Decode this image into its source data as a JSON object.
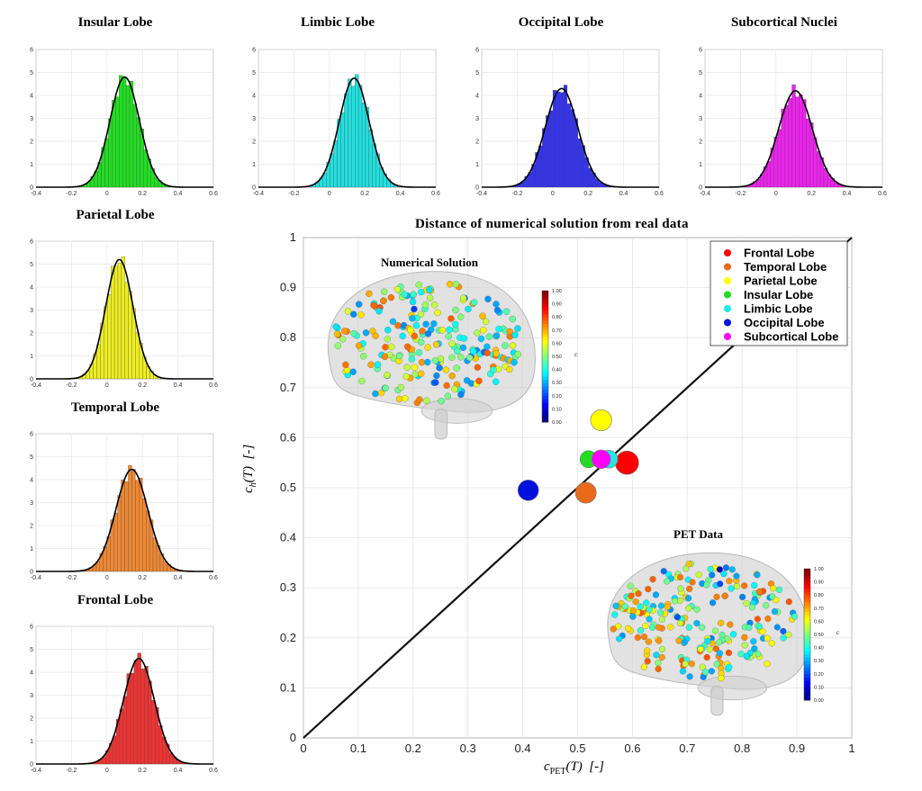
{
  "histograms": [
    {
      "id": "insular",
      "title": "Insular Lobe",
      "color": "#22dd22",
      "mean": 0.1,
      "sd": 0.083,
      "peak": 4.8,
      "skew": 0.0
    },
    {
      "id": "limbic",
      "title": "Limbic Lobe",
      "color": "#22e0e0",
      "mean": 0.14,
      "sd": 0.084,
      "peak": 4.75,
      "skew": 0.02
    },
    {
      "id": "occipital",
      "title": "Occipital Lobe",
      "color": "#3333ee",
      "mean": 0.05,
      "sd": 0.092,
      "peak": 4.3,
      "skew": -0.02
    },
    {
      "id": "subcortical",
      "title": "Subcortical Nuclei",
      "color": "#ee22ee",
      "mean": 0.11,
      "sd": 0.095,
      "peak": 4.2,
      "skew": 0.0
    },
    {
      "id": "parietal",
      "title": "Parietal Lobe",
      "color": "#eeee22",
      "mean": 0.07,
      "sd": 0.077,
      "peak": 5.2,
      "skew": 0.0
    },
    {
      "id": "temporal",
      "title": "Temporal Lobe",
      "color": "#ee8833",
      "mean": 0.14,
      "sd": 0.09,
      "peak": 4.45,
      "skew": 0.0
    },
    {
      "id": "frontal",
      "title": "Frontal Lobe",
      "color": "#ee3333",
      "mean": 0.18,
      "sd": 0.087,
      "peak": 4.6,
      "skew": 0.0
    }
  ],
  "hist_axes": {
    "xticks": [
      "-0.4",
      "-0.2",
      "0",
      "0.2",
      "0.4",
      "0.6"
    ],
    "yticks": [
      "0",
      "1",
      "2",
      "3",
      "4",
      "5",
      "6"
    ],
    "xlim": [
      -0.4,
      0.6
    ],
    "ylim": [
      0,
      6
    ]
  },
  "chart_data": {
    "type": "scatter",
    "title": "Distance of numerical solution from real data",
    "xlabel": "c_PET(T) [-]",
    "ylabel": "c_h(T) [-]",
    "xlim": [
      0,
      1
    ],
    "ylim": [
      0,
      1
    ],
    "xticks": [
      "0",
      "0.1",
      "0.2",
      "0.3",
      "0.4",
      "0.5",
      "0.6",
      "0.7",
      "0.8",
      "0.9",
      "1"
    ],
    "yticks": [
      "0",
      "0.1",
      "0.2",
      "0.3",
      "0.4",
      "0.5",
      "0.6",
      "0.7",
      "0.8",
      "0.9",
      "1"
    ],
    "grid": true,
    "reference_line": "y = x",
    "legend_position": "top-right",
    "series": [
      {
        "name": "Frontal Lobe",
        "color": "#ff0000",
        "x": 0.59,
        "y": 0.55,
        "size": 1.0
      },
      {
        "name": "Temporal Lobe",
        "color": "#e86a1a",
        "x": 0.515,
        "y": 0.49,
        "size": 0.8
      },
      {
        "name": "Parietal Lobe",
        "color": "#ffff00",
        "x": 0.543,
        "y": 0.635,
        "size": 0.82
      },
      {
        "name": "Insular Lobe",
        "color": "#22dd22",
        "x": 0.52,
        "y": 0.557,
        "size": 0.5
      },
      {
        "name": "Limbic Lobe",
        "color": "#22e8e8",
        "x": 0.557,
        "y": 0.557,
        "size": 0.55
      },
      {
        "name": "Occipital Lobe",
        "color": "#0011dd",
        "x": 0.41,
        "y": 0.495,
        "size": 0.78
      },
      {
        "name": "Subcortical Lobe",
        "color": "#ff00ff",
        "x": 0.543,
        "y": 0.557,
        "size": 0.62
      }
    ]
  },
  "insets": {
    "numerical": {
      "title": "Numerical Solution"
    },
    "pet": {
      "title": "PET Data"
    },
    "colorbar": {
      "ticks": [
        "0.00",
        "0.10",
        "0.20",
        "0.30",
        "0.40",
        "0.50",
        "0.60",
        "0.70",
        "0.80",
        "0.90",
        "1.00"
      ],
      "label": "c"
    }
  }
}
